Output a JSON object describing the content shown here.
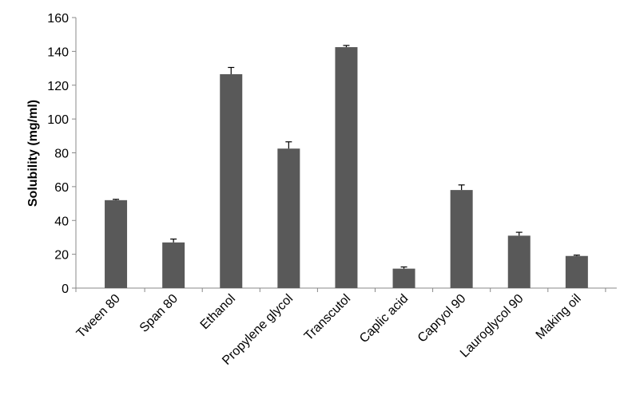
{
  "chart_data": {
    "type": "bar",
    "y_label": "Solubility (mg/ml)",
    "categories": [
      "Tween 80",
      "Span 80",
      "Ethanol",
      "Propylene glycol",
      "Transcutol",
      "Caplic acid",
      "Capryol 90",
      "Lauroglycol 90",
      "Making oil"
    ],
    "values": [
      52,
      27,
      126.5,
      82.5,
      142.5,
      11.5,
      58,
      31,
      19
    ],
    "errors": [
      0.5,
      2,
      4,
      4,
      1,
      1,
      3,
      2,
      0.5
    ],
    "color": "#595959",
    "ylim": [
      0,
      160
    ],
    "yticks": [
      0,
      20,
      40,
      60,
      80,
      100,
      120,
      140,
      160
    ],
    "grid": false
  }
}
